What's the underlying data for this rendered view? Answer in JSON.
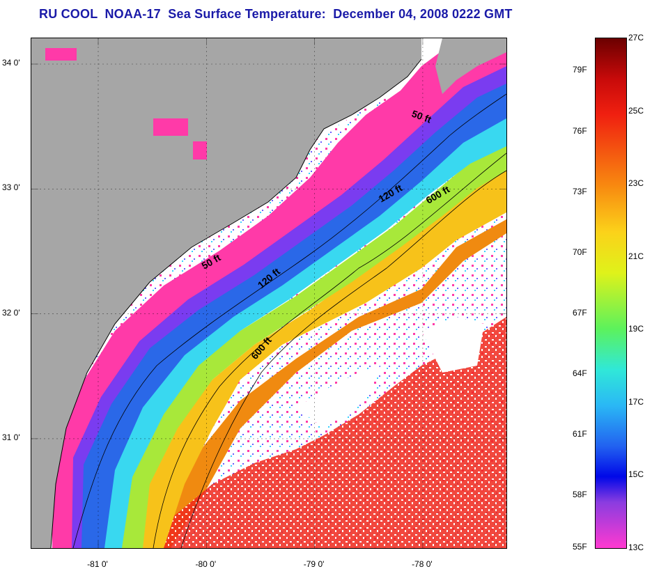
{
  "title": "RU COOL  NOAA-17  Sea Surface Temperature:  December 04, 2008 0222 GMT",
  "map": {
    "lat_ticks": [
      {
        "value": 34.0,
        "label": "34 0'"
      },
      {
        "value": 33.0,
        "label": "33 0'"
      },
      {
        "value": 32.0,
        "label": "32 0'"
      },
      {
        "value": 31.0,
        "label": "31 0'"
      }
    ],
    "lon_ticks": [
      {
        "value": -81.0,
        "label": "-81 0'"
      },
      {
        "value": -80.0,
        "label": "-80 0'"
      },
      {
        "value": -79.0,
        "label": "-79 0'"
      },
      {
        "value": -78.0,
        "label": "-78 0'"
      }
    ],
    "contours": [
      {
        "depth": "50 ft",
        "labels": [
          "50 ft",
          "50 ft"
        ]
      },
      {
        "depth": "120 ft",
        "labels": [
          "120 ft",
          "120 ft"
        ]
      },
      {
        "depth": "600 ft",
        "labels": [
          "600 ft",
          "600 ft"
        ]
      }
    ],
    "colors": {
      "land": "#a6a6a6",
      "cloud": "#ffffff",
      "coast_band": "#ff3aa8"
    }
  },
  "colorbar": {
    "min_c": 13,
    "max_c": 27,
    "c_labels": [
      "27C",
      "25C",
      "23C",
      "21C",
      "19C",
      "17C",
      "15C",
      "13C"
    ],
    "f_labels": [
      "79F",
      "76F",
      "73F",
      "70F",
      "67F",
      "64F",
      "61F",
      "58F",
      "55F"
    ],
    "f_values": [
      79,
      76,
      73,
      70,
      67,
      64,
      61,
      58,
      55
    ]
  }
}
